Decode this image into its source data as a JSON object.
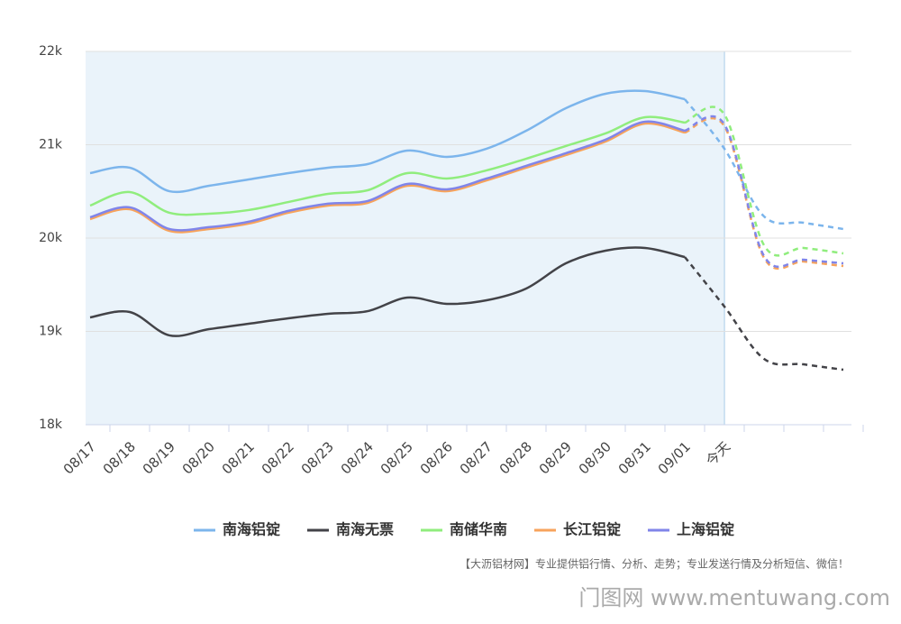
{
  "chart_data": {
    "type": "line",
    "categories": [
      "08/17",
      "08/18",
      "08/19",
      "08/20",
      "08/21",
      "08/22",
      "08/23",
      "08/24",
      "08/25",
      "08/26",
      "08/27",
      "08/28",
      "08/29",
      "08/30",
      "08/31",
      "09/01",
      "今天",
      null,
      null,
      null
    ],
    "series": [
      {
        "name": "南海铝锭",
        "color": "#7cb5ec",
        "values": [
          20696,
          20754,
          20502,
          20560,
          20628,
          20696,
          20754,
          20792,
          20937,
          20870,
          20957,
          21150,
          21391,
          21546,
          21575,
          21488,
          20957,
          20232,
          20164,
          20097
        ]
      },
      {
        "name": "南海无票",
        "color": "#434348",
        "values": [
          19150,
          19208,
          18957,
          19024,
          19082,
          19140,
          19188,
          19217,
          19362,
          19295,
          19333,
          19459,
          19729,
          19865,
          19894,
          19797,
          19266,
          18705,
          18647,
          18589
        ]
      },
      {
        "name": "南储华南",
        "color": "#90ed7d",
        "values": [
          20348,
          20493,
          20271,
          20261,
          20300,
          20386,
          20473,
          20512,
          20696,
          20638,
          20725,
          20850,
          20986,
          21121,
          21295,
          21237,
          21324,
          19923,
          19894,
          19836
        ]
      },
      {
        "name": "长江铝锭",
        "color": "#f7a35c",
        "values": [
          20203,
          20309,
          20077,
          20097,
          20155,
          20271,
          20348,
          20377,
          20560,
          20502,
          20618,
          20754,
          20889,
          21034,
          21227,
          21130,
          21198,
          19787,
          19749,
          19700
        ]
      },
      {
        "name": "上海铝锭",
        "color": "#8085e9",
        "values": [
          20223,
          20329,
          20097,
          20117,
          20175,
          20291,
          20368,
          20397,
          20580,
          20522,
          20638,
          20774,
          20909,
          21054,
          21247,
          21150,
          21218,
          19807,
          19768,
          19729
        ]
      }
    ],
    "ylim": [
      18000,
      22000
    ],
    "yticks": [
      {
        "value": 18000,
        "label": "18k"
      },
      {
        "value": 19000,
        "label": "19k"
      },
      {
        "value": 20000,
        "label": "20k"
      },
      {
        "value": 21000,
        "label": "21k"
      },
      {
        "value": 22000,
        "label": "22k"
      }
    ],
    "grid": true,
    "footnote": "【大沥铝材网】专业提供铝行情、分析、走势；专业发送行情及分析短信、微信！",
    "watermark": "门图网 www.mentuwang.com"
  }
}
